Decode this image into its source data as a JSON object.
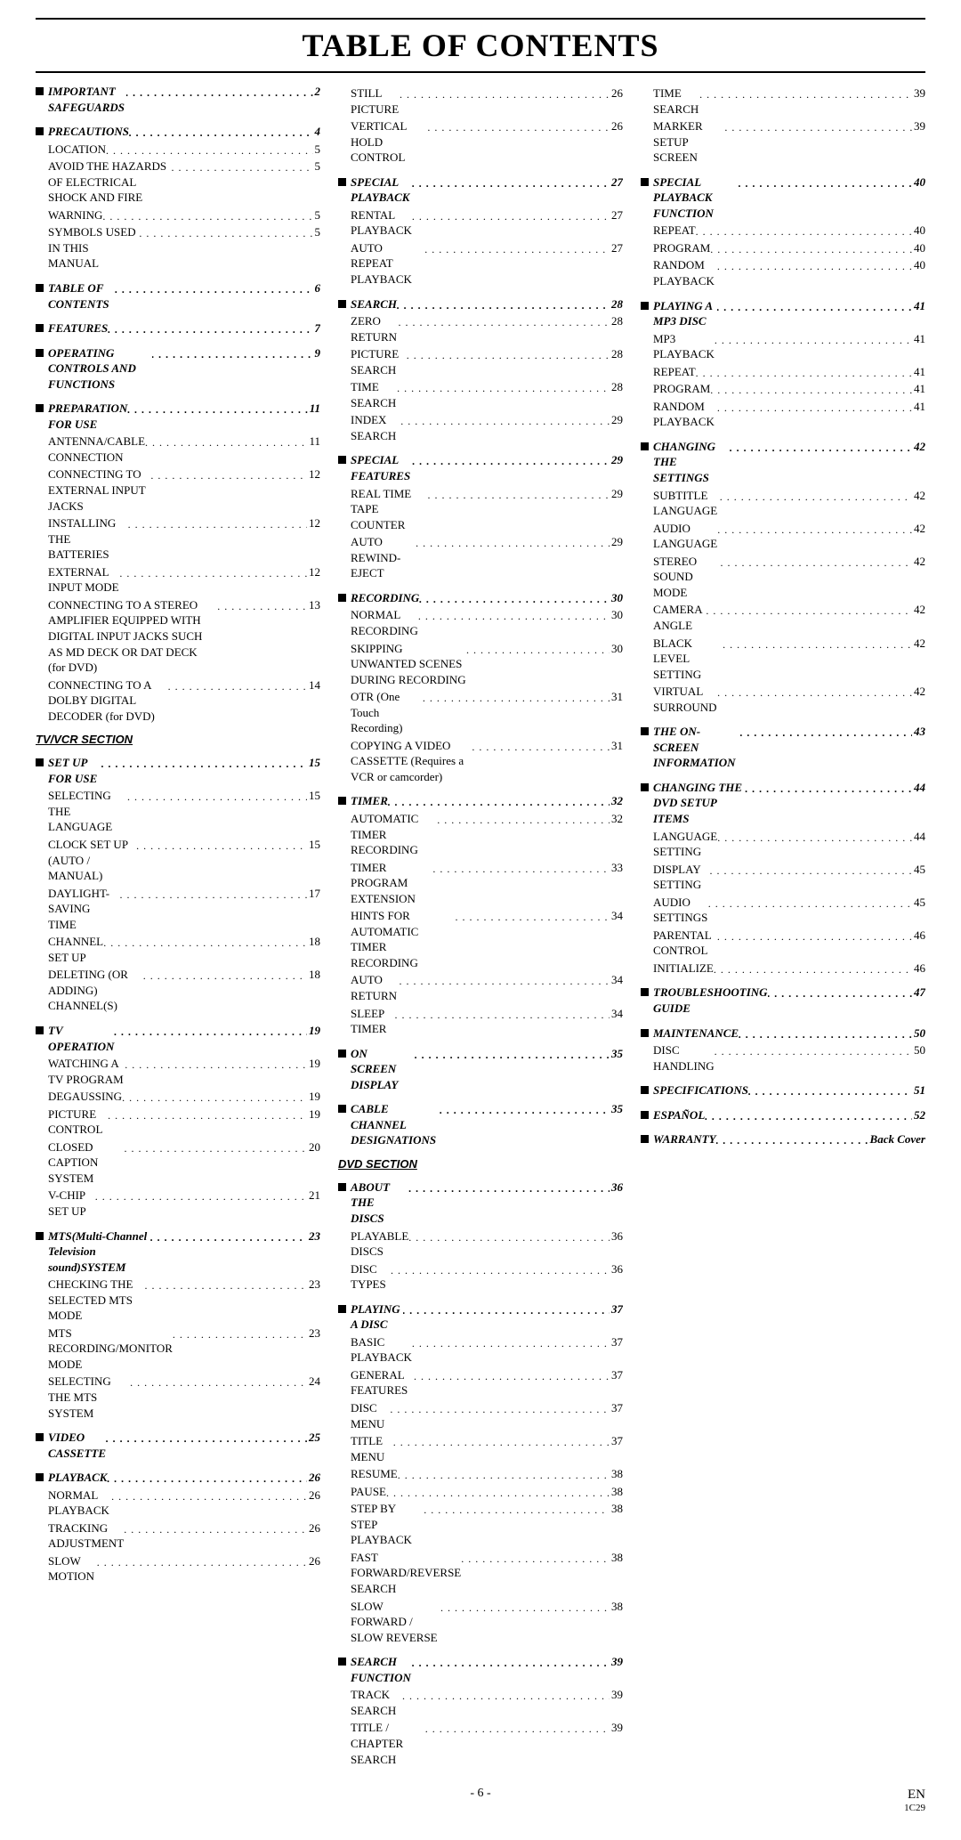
{
  "title": "TABLE OF CONTENTS",
  "columns": [
    [
      {
        "type": "section",
        "label": "IMPORTANT SAFEGUARDS",
        "page": "2"
      },
      {
        "type": "section",
        "label": "PRECAUTIONS",
        "page": "4"
      },
      {
        "type": "sub",
        "label": "LOCATION",
        "page": "5"
      },
      {
        "type": "sub",
        "label": "AVOID THE HAZARDS OF ELECTRICAL SHOCK AND FIRE",
        "page": "5"
      },
      {
        "type": "sub",
        "label": "WARNING",
        "page": "5"
      },
      {
        "type": "sub",
        "label": "SYMBOLS USED IN THIS MANUAL",
        "page": "5"
      },
      {
        "type": "section",
        "label": "TABLE OF CONTENTS",
        "page": "6"
      },
      {
        "type": "section",
        "label": "FEATURES",
        "page": "7"
      },
      {
        "type": "section",
        "label": "OPERATING CONTROLS AND FUNCTIONS",
        "page": "9"
      },
      {
        "type": "section",
        "label": "PREPARATION FOR USE",
        "page": "11"
      },
      {
        "type": "sub",
        "label": "ANTENNA/CABLE CONNECTION",
        "page": "11"
      },
      {
        "type": "sub",
        "label": "CONNECTING TO EXTERNAL INPUT JACKS",
        "page": "12"
      },
      {
        "type": "sub",
        "label": "INSTALLING THE BATTERIES",
        "page": "12"
      },
      {
        "type": "sub",
        "label": "EXTERNAL INPUT MODE",
        "page": "12"
      },
      {
        "type": "sub",
        "label": "CONNECTING TO A STEREO AMPLIFIER EQUIPPED WITH DIGITAL INPUT JACKS SUCH AS MD DECK OR DAT DECK (for DVD)",
        "page": "13"
      },
      {
        "type": "sub",
        "label": "CONNECTING TO A DOLBY DIGITAL DECODER (for DVD)",
        "page": "14"
      },
      {
        "type": "divider",
        "label": "TV/VCR SECTION"
      },
      {
        "type": "section",
        "label": "SET UP FOR USE",
        "page": "15"
      },
      {
        "type": "sub",
        "label": "SELECTING THE LANGUAGE",
        "page": "15"
      },
      {
        "type": "sub",
        "label": "CLOCK SET UP (AUTO / MANUAL)",
        "page": "15"
      },
      {
        "type": "sub",
        "label": "DAYLIGHT-SAVING TIME",
        "page": "17"
      },
      {
        "type": "sub",
        "label": "CHANNEL SET UP",
        "page": "18"
      },
      {
        "type": "sub",
        "label": "DELETING (OR ADDING) CHANNEL(S)",
        "page": "18"
      },
      {
        "type": "section",
        "label": "TV OPERATION",
        "page": "19"
      },
      {
        "type": "sub",
        "label": "WATCHING A TV PROGRAM",
        "page": "19"
      },
      {
        "type": "sub",
        "label": "DEGAUSSING",
        "page": "19"
      },
      {
        "type": "sub",
        "label": "PICTURE CONTROL",
        "page": "19"
      },
      {
        "type": "sub",
        "label": "CLOSED CAPTION SYSTEM",
        "page": "20"
      },
      {
        "type": "sub",
        "label": "V-CHIP SET UP",
        "page": "21"
      },
      {
        "type": "section",
        "label": "MTS(Multi-Channel Television sound)SYSTEM",
        "page": "23"
      },
      {
        "type": "sub",
        "label": "CHECKING THE SELECTED MTS MODE",
        "page": "23"
      },
      {
        "type": "sub",
        "label": "MTS RECORDING/MONITOR MODE",
        "page": "23"
      },
      {
        "type": "sub",
        "label": "SELECTING THE MTS SYSTEM",
        "page": "24"
      },
      {
        "type": "section",
        "label": "VIDEO CASSETTE",
        "page": "25"
      },
      {
        "type": "section",
        "label": "PLAYBACK",
        "page": "26"
      },
      {
        "type": "sub",
        "label": "NORMAL PLAYBACK",
        "page": "26"
      },
      {
        "type": "sub",
        "label": "TRACKING ADJUSTMENT",
        "page": "26"
      },
      {
        "type": "sub",
        "label": "SLOW MOTION",
        "page": "26"
      }
    ],
    [
      {
        "type": "sub",
        "label": "STILL PICTURE",
        "page": "26"
      },
      {
        "type": "sub",
        "label": "VERTICAL HOLD CONTROL",
        "page": "26"
      },
      {
        "type": "section",
        "label": "SPECIAL PLAYBACK",
        "page": "27"
      },
      {
        "type": "sub",
        "label": "RENTAL PLAYBACK",
        "page": "27"
      },
      {
        "type": "sub",
        "label": "AUTO REPEAT PLAYBACK",
        "page": "27"
      },
      {
        "type": "section",
        "label": "SEARCH",
        "page": "28"
      },
      {
        "type": "sub",
        "label": "ZERO RETURN",
        "page": "28"
      },
      {
        "type": "sub",
        "label": "PICTURE SEARCH",
        "page": "28"
      },
      {
        "type": "sub",
        "label": "TIME SEARCH",
        "page": "28"
      },
      {
        "type": "sub",
        "label": "INDEX SEARCH",
        "page": "29"
      },
      {
        "type": "section",
        "label": "SPECIAL FEATURES",
        "page": "29"
      },
      {
        "type": "sub",
        "label": "REAL TIME TAPE COUNTER",
        "page": "29"
      },
      {
        "type": "sub",
        "label": "AUTO REWIND-EJECT",
        "page": "29"
      },
      {
        "type": "section",
        "label": "RECORDING",
        "page": "30"
      },
      {
        "type": "sub",
        "label": "NORMAL RECORDING",
        "page": "30"
      },
      {
        "type": "sub",
        "label": "SKIPPING UNWANTED SCENES DURING RECORDING",
        "page": "30"
      },
      {
        "type": "sub",
        "label": "OTR (One Touch Recording)",
        "page": "31"
      },
      {
        "type": "sub",
        "label": "COPYING A VIDEO CASSETTE (Requires a VCR or camcorder)",
        "page": "31"
      },
      {
        "type": "section",
        "label": "TIMER",
        "page": "32"
      },
      {
        "type": "sub",
        "label": "AUTOMATIC TIMER RECORDING",
        "page": "32"
      },
      {
        "type": "sub",
        "label": "TIMER PROGRAM EXTENSION",
        "page": "33"
      },
      {
        "type": "sub",
        "label": "HINTS FOR AUTOMATIC TIMER RECORDING",
        "page": "34"
      },
      {
        "type": "sub",
        "label": "AUTO RETURN",
        "page": "34"
      },
      {
        "type": "sub",
        "label": "SLEEP TIMER",
        "page": "34"
      },
      {
        "type": "section",
        "label": "ON SCREEN DISPLAY",
        "page": "35"
      },
      {
        "type": "section",
        "label": "CABLE CHANNEL DESIGNATIONS",
        "page": "35"
      },
      {
        "type": "divider",
        "label": "DVD SECTION"
      },
      {
        "type": "section",
        "label": "ABOUT THE DISCS",
        "page": "36"
      },
      {
        "type": "sub",
        "label": "PLAYABLE DISCS",
        "page": "36"
      },
      {
        "type": "sub",
        "label": "DISC TYPES",
        "page": "36"
      },
      {
        "type": "section",
        "label": "PLAYING A DISC",
        "page": "37"
      },
      {
        "type": "sub",
        "label": "BASIC PLAYBACK",
        "page": "37"
      },
      {
        "type": "sub",
        "label": "GENERAL FEATURES",
        "page": "37"
      },
      {
        "type": "sub",
        "label": "DISC MENU",
        "page": "37"
      },
      {
        "type": "sub",
        "label": "TITLE MENU",
        "page": "37"
      },
      {
        "type": "sub",
        "label": "RESUME",
        "page": "38"
      },
      {
        "type": "sub",
        "label": "PAUSE",
        "page": "38"
      },
      {
        "type": "sub",
        "label": "STEP BY STEP PLAYBACK",
        "page": "38"
      },
      {
        "type": "sub",
        "label": "FAST FORWARD/REVERSE SEARCH",
        "page": "38"
      },
      {
        "type": "sub",
        "label": "SLOW FORWARD / SLOW REVERSE",
        "page": "38"
      },
      {
        "type": "section",
        "label": "SEARCH FUNCTION",
        "page": "39"
      },
      {
        "type": "sub",
        "label": "TRACK SEARCH",
        "page": "39"
      },
      {
        "type": "sub",
        "label": "TITLE / CHAPTER SEARCH",
        "page": "39"
      }
    ],
    [
      {
        "type": "sub",
        "label": "TIME SEARCH",
        "page": "39"
      },
      {
        "type": "sub",
        "label": "MARKER SETUP SCREEN",
        "page": "39"
      },
      {
        "type": "section",
        "label": "SPECIAL PLAYBACK FUNCTION",
        "page": "40"
      },
      {
        "type": "sub",
        "label": "REPEAT",
        "page": "40"
      },
      {
        "type": "sub",
        "label": "PROGRAM",
        "page": "40"
      },
      {
        "type": "sub",
        "label": "RANDOM PLAYBACK",
        "page": "40"
      },
      {
        "type": "section",
        "label": "PLAYING A MP3 DISC",
        "page": "41"
      },
      {
        "type": "sub",
        "label": "MP3 PLAYBACK",
        "page": "41"
      },
      {
        "type": "sub",
        "label": "REPEAT",
        "page": "41"
      },
      {
        "type": "sub",
        "label": "PROGRAM",
        "page": "41"
      },
      {
        "type": "sub",
        "label": "RANDOM PLAYBACK",
        "page": "41"
      },
      {
        "type": "section",
        "label": "CHANGING THE SETTINGS",
        "page": "42"
      },
      {
        "type": "sub",
        "label": "SUBTITLE LANGUAGE",
        "page": "42"
      },
      {
        "type": "sub",
        "label": "AUDIO LANGUAGE",
        "page": "42"
      },
      {
        "type": "sub",
        "label": "STEREO SOUND MODE",
        "page": "42"
      },
      {
        "type": "sub",
        "label": "CAMERA ANGLE",
        "page": "42"
      },
      {
        "type": "sub",
        "label": "BLACK LEVEL SETTING",
        "page": "42"
      },
      {
        "type": "sub",
        "label": "VIRTUAL SURROUND",
        "page": "42"
      },
      {
        "type": "section",
        "label": "THE ON-SCREEN INFORMATION",
        "page": "43"
      },
      {
        "type": "section",
        "label": "CHANGING THE DVD SETUP ITEMS",
        "page": "44"
      },
      {
        "type": "sub",
        "label": "LANGUAGE SETTING",
        "page": "44"
      },
      {
        "type": "sub",
        "label": "DISPLAY SETTING",
        "page": "45"
      },
      {
        "type": "sub",
        "label": "AUDIO SETTINGS",
        "page": "45"
      },
      {
        "type": "sub",
        "label": "PARENTAL CONTROL",
        "page": "46"
      },
      {
        "type": "sub",
        "label": "INITIALIZE",
        "page": "46"
      },
      {
        "type": "section",
        "label": "TROUBLESHOOTING GUIDE",
        "page": "47"
      },
      {
        "type": "section",
        "label": "MAINTENANCE",
        "page": "50"
      },
      {
        "type": "sub",
        "label": "DISC HANDLING",
        "page": "50"
      },
      {
        "type": "section",
        "label": "SPECIFICATIONS",
        "page": "51"
      },
      {
        "type": "section",
        "label": "ESPAÑOL",
        "page": "52"
      },
      {
        "type": "section",
        "label": "WARRANTY",
        "page": "Back Cover"
      }
    ]
  ],
  "footer": {
    "center": "- 6 -",
    "right_top": "EN",
    "right_bottom": "1C29"
  }
}
